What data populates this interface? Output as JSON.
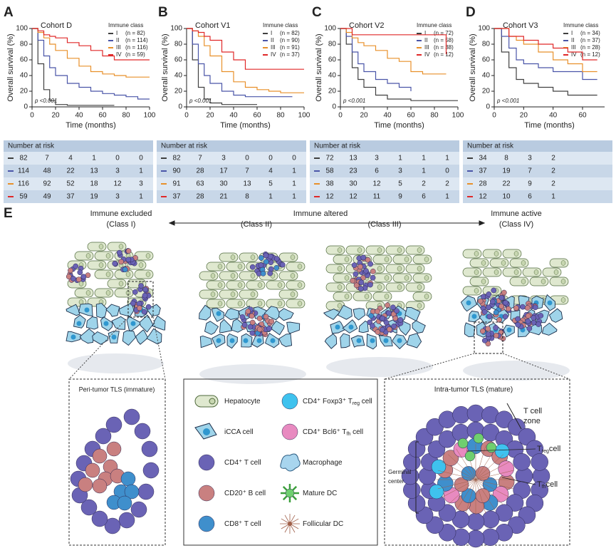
{
  "chart_data": [
    {
      "type": "line",
      "panel_label": "A",
      "title": "Cohort D",
      "legend_title": "Immune class",
      "x_label": "Time (months)",
      "y_label": "Overall survival (%)",
      "p_value": "p <0.001",
      "x": [
        0,
        5,
        10,
        15,
        20,
        30,
        40,
        50,
        60,
        70,
        80,
        90,
        100
      ],
      "xlim": [
        0,
        100
      ],
      "xticks": [
        0,
        20,
        40,
        60,
        80,
        100
      ],
      "ylim": [
        0,
        100
      ],
      "yticks": [
        0,
        20,
        40,
        60,
        80,
        100
      ],
      "series": [
        {
          "name": "I",
          "n_label": "(n = 82)",
          "color": "#404040",
          "values": [
            100,
            55,
            22,
            8,
            3,
            2,
            2,
            2,
            2,
            2,
            null,
            null,
            null
          ]
        },
        {
          "name": "II",
          "n_label": "(n = 114)",
          "color": "#4a55a8",
          "values": [
            100,
            85,
            65,
            50,
            40,
            30,
            25,
            20,
            17,
            15,
            13,
            10,
            10
          ]
        },
        {
          "name": "III",
          "n_label": "(n = 116)",
          "color": "#e8902a",
          "values": [
            100,
            95,
            88,
            80,
            72,
            62,
            52,
            45,
            42,
            40,
            38,
            38,
            38
          ]
        },
        {
          "name": "IV",
          "n_label": "(n = 59)",
          "color": "#e02828",
          "values": [
            100,
            97,
            92,
            90,
            88,
            82,
            78,
            72,
            65,
            60,
            60,
            60,
            60
          ]
        }
      ],
      "risk_table": {
        "title": "Number at risk",
        "rows": [
          [
            82,
            7,
            4,
            1,
            0,
            0
          ],
          [
            114,
            48,
            22,
            13,
            3,
            1
          ],
          [
            116,
            92,
            52,
            18,
            12,
            3
          ],
          [
            59,
            49,
            37,
            19,
            3,
            1
          ]
        ]
      }
    },
    {
      "type": "line",
      "panel_label": "B",
      "title": "Cohort V1",
      "legend_title": "Immune class",
      "x_label": "Time (months)",
      "y_label": "Overall survival (%)",
      "p_value": "p <0.001",
      "x": [
        0,
        5,
        10,
        15,
        20,
        30,
        40,
        50,
        60,
        70,
        80,
        90,
        100
      ],
      "xlim": [
        0,
        100
      ],
      "xticks": [
        0,
        20,
        40,
        60,
        80,
        100
      ],
      "ylim": [
        0,
        100
      ],
      "yticks": [
        0,
        20,
        40,
        60,
        80,
        100
      ],
      "series": [
        {
          "name": "I",
          "n_label": "(n = 82)",
          "color": "#404040",
          "values": [
            100,
            60,
            25,
            10,
            5,
            3,
            3,
            3,
            3,
            null,
            null,
            null,
            null
          ]
        },
        {
          "name": "II",
          "n_label": "(n = 90)",
          "color": "#4a55a8",
          "values": [
            100,
            80,
            55,
            40,
            30,
            20,
            15,
            13,
            13,
            13,
            13,
            13,
            null
          ]
        },
        {
          "name": "III",
          "n_label": "(n = 91)",
          "color": "#e8902a",
          "values": [
            100,
            97,
            90,
            78,
            65,
            45,
            32,
            25,
            22,
            20,
            18,
            18,
            18
          ]
        },
        {
          "name": "IV",
          "n_label": "(n = 37)",
          "color": "#e02828",
          "values": [
            100,
            97,
            95,
            90,
            85,
            70,
            60,
            48,
            48,
            48,
            48,
            48,
            48
          ]
        }
      ],
      "risk_table": {
        "title": "Number at risk",
        "rows": [
          [
            82,
            7,
            3,
            0,
            0,
            0
          ],
          [
            90,
            28,
            17,
            7,
            4,
            1
          ],
          [
            91,
            63,
            30,
            13,
            5,
            1
          ],
          [
            37,
            28,
            21,
            8,
            1,
            1
          ]
        ]
      }
    },
    {
      "type": "line",
      "panel_label": "C",
      "title": "Cohort V2",
      "legend_title": "Immune class",
      "x_label": "Time (months)",
      "y_label": "Overall survival (%)",
      "p_value": "p <0.001",
      "x": [
        0,
        5,
        10,
        15,
        20,
        30,
        40,
        50,
        60,
        70,
        80,
        90,
        100
      ],
      "xlim": [
        0,
        100
      ],
      "xticks": [
        0,
        20,
        40,
        60,
        80,
        100
      ],
      "ylim": [
        0,
        100
      ],
      "yticks": [
        0,
        20,
        40,
        60,
        80,
        100
      ],
      "series": [
        {
          "name": "I",
          "n_label": "(n = 72)",
          "color": "#404040",
          "values": [
            100,
            80,
            50,
            35,
            25,
            15,
            10,
            10,
            8,
            8,
            8,
            8,
            8
          ]
        },
        {
          "name": "II",
          "n_label": "(n = 58)",
          "color": "#4a55a8",
          "values": [
            100,
            90,
            70,
            55,
            45,
            35,
            30,
            25,
            20,
            null,
            null,
            null,
            null
          ]
        },
        {
          "name": "III",
          "n_label": "(n = 38)",
          "color": "#e8902a",
          "values": [
            100,
            95,
            88,
            82,
            78,
            72,
            62,
            58,
            45,
            42,
            42,
            42,
            null
          ]
        },
        {
          "name": "IV",
          "n_label": "(n = 12)",
          "color": "#e02828",
          "values": [
            100,
            100,
            92,
            92,
            92,
            92,
            92,
            92,
            92,
            92,
            92,
            67,
            null
          ]
        }
      ],
      "risk_table": {
        "title": "Number at risk",
        "rows": [
          [
            72,
            13,
            3,
            1,
            1,
            1
          ],
          [
            58,
            23,
            6,
            3,
            1,
            0
          ],
          [
            38,
            30,
            12,
            5,
            2,
            2
          ],
          [
            12,
            12,
            11,
            9,
            6,
            1
          ]
        ]
      }
    },
    {
      "type": "line",
      "panel_label": "D",
      "title": "Cohort V3",
      "legend_title": "Immune class",
      "x_label": "Time (months)",
      "y_label": "Overall survival (%)",
      "p_value": "p <0.001",
      "x": [
        0,
        5,
        10,
        15,
        20,
        30,
        40,
        50,
        60,
        70
      ],
      "xlim": [
        0,
        75
      ],
      "xticks": [
        0,
        20,
        40,
        60
      ],
      "ylim": [
        0,
        100
      ],
      "yticks": [
        0,
        20,
        40,
        60,
        80,
        100
      ],
      "series": [
        {
          "name": "I",
          "n_label": "(n = 34)",
          "color": "#404040",
          "values": [
            100,
            70,
            50,
            35,
            30,
            25,
            20,
            15,
            15,
            15
          ]
        },
        {
          "name": "II",
          "n_label": "(n = 37)",
          "color": "#4a55a8",
          "values": [
            100,
            90,
            75,
            60,
            55,
            50,
            45,
            45,
            35,
            35
          ]
        },
        {
          "name": "III",
          "n_label": "(n = 28)",
          "color": "#e8902a",
          "values": [
            100,
            100,
            90,
            85,
            80,
            70,
            60,
            55,
            45,
            45
          ]
        },
        {
          "name": "IV",
          "n_label": "(n = 12)",
          "color": "#e02828",
          "values": [
            100,
            100,
            90,
            90,
            85,
            80,
            75,
            70,
            60,
            60
          ]
        }
      ],
      "risk_table": {
        "title": "Number at risk",
        "rows": [
          [
            34,
            8,
            3,
            2
          ],
          [
            37,
            19,
            7,
            2
          ],
          [
            28,
            22,
            9,
            2
          ],
          [
            12,
            10,
            6,
            1
          ]
        ]
      }
    }
  ],
  "diagram": {
    "panel_label": "E",
    "altered_label": "Immune altered",
    "classes": [
      {
        "title": "Immune excluded",
        "subtitle": "(Class I)"
      },
      {
        "subtitle": "(Class II)"
      },
      {
        "subtitle": "(Class III)"
      },
      {
        "title": "Immune active",
        "subtitle": "(Class IV)"
      }
    ],
    "peri_title": "Peri-tumor TLS (immature)",
    "intra_title": "Intra-tumor TLS (mature)",
    "t_zone": [
      "T cell",
      "zone"
    ],
    "germinal": [
      "Germinal",
      "center"
    ],
    "treg_label": {
      "main": "T",
      "sub": "reg",
      "tail": "cell"
    },
    "tfh_label": {
      "main": "T",
      "sub": "fh",
      "tail": "cell"
    },
    "legend": [
      {
        "label": "Hepatocyte"
      },
      {
        "label": "iCCA cell"
      },
      {
        "label": "CD4⁺ T cell"
      },
      {
        "label": "CD20⁺ B cell"
      },
      {
        "label": "CD8⁺ T cell"
      },
      {
        "label": "CD4⁺ Foxp3⁺ T",
        "sub": "reg",
        "tail": " cell"
      },
      {
        "label": "CD4⁺ Bcl6⁺ T",
        "sub": "fh",
        "tail": " cell"
      },
      {
        "label": "Macrophage"
      },
      {
        "label": "Mature DC"
      },
      {
        "label": "Follicular DC"
      }
    ]
  }
}
